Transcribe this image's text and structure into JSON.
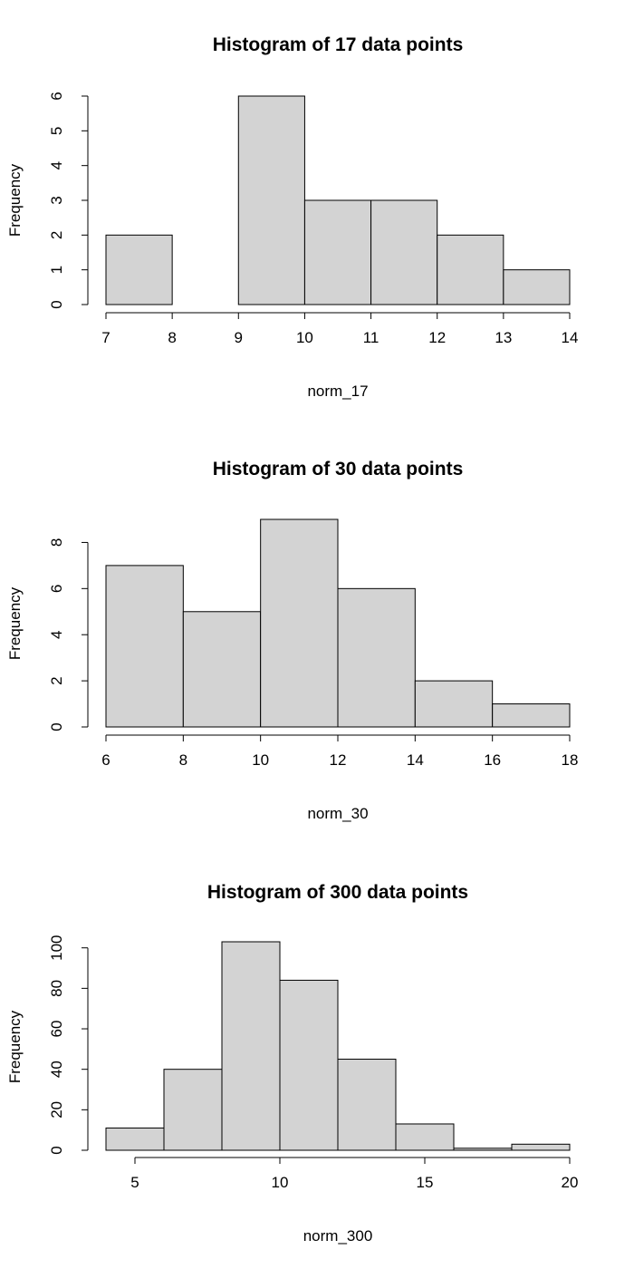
{
  "chart_data": [
    {
      "type": "bar",
      "title": "Histogram of 17 data points",
      "xlabel": "norm_17",
      "ylabel": "Frequency",
      "bins": [
        [
          7,
          8
        ],
        [
          8,
          9
        ],
        [
          9,
          10
        ],
        [
          10,
          11
        ],
        [
          11,
          12
        ],
        [
          12,
          13
        ],
        [
          13,
          14
        ]
      ],
      "values": [
        2,
        0,
        6,
        3,
        3,
        2,
        1
      ],
      "xlim": [
        7,
        14
      ],
      "ylim": [
        0,
        6
      ],
      "xticks": [
        7,
        8,
        9,
        10,
        11,
        12,
        13,
        14
      ],
      "yticks": [
        0,
        1,
        2,
        3,
        4,
        5,
        6
      ],
      "grid": false
    },
    {
      "type": "bar",
      "title": "Histogram of 30 data points",
      "xlabel": "norm_30",
      "ylabel": "Frequency",
      "bins": [
        [
          6,
          8
        ],
        [
          8,
          10
        ],
        [
          10,
          12
        ],
        [
          12,
          14
        ],
        [
          14,
          16
        ],
        [
          16,
          18
        ]
      ],
      "values": [
        7,
        5,
        9,
        6,
        2,
        1
      ],
      "xlim": [
        6,
        18
      ],
      "ylim": [
        0,
        9
      ],
      "xticks": [
        6,
        8,
        10,
        12,
        14,
        16,
        18
      ],
      "yticks": [
        0,
        2,
        4,
        6,
        8
      ],
      "grid": false
    },
    {
      "type": "bar",
      "title": "Histogram of 300 data points",
      "xlabel": "norm_300",
      "ylabel": "Frequency",
      "bins": [
        [
          4,
          6
        ],
        [
          6,
          8
        ],
        [
          8,
          10
        ],
        [
          10,
          12
        ],
        [
          12,
          14
        ],
        [
          14,
          16
        ],
        [
          16,
          18
        ],
        [
          18,
          20
        ]
      ],
      "values": [
        11,
        40,
        103,
        84,
        45,
        13,
        1,
        3
      ],
      "xlim": [
        4,
        20
      ],
      "ylim": [
        0,
        103
      ],
      "xticks": [
        5,
        10,
        15,
        20
      ],
      "yticks": [
        0,
        20,
        40,
        60,
        80,
        100
      ],
      "grid": false
    }
  ]
}
